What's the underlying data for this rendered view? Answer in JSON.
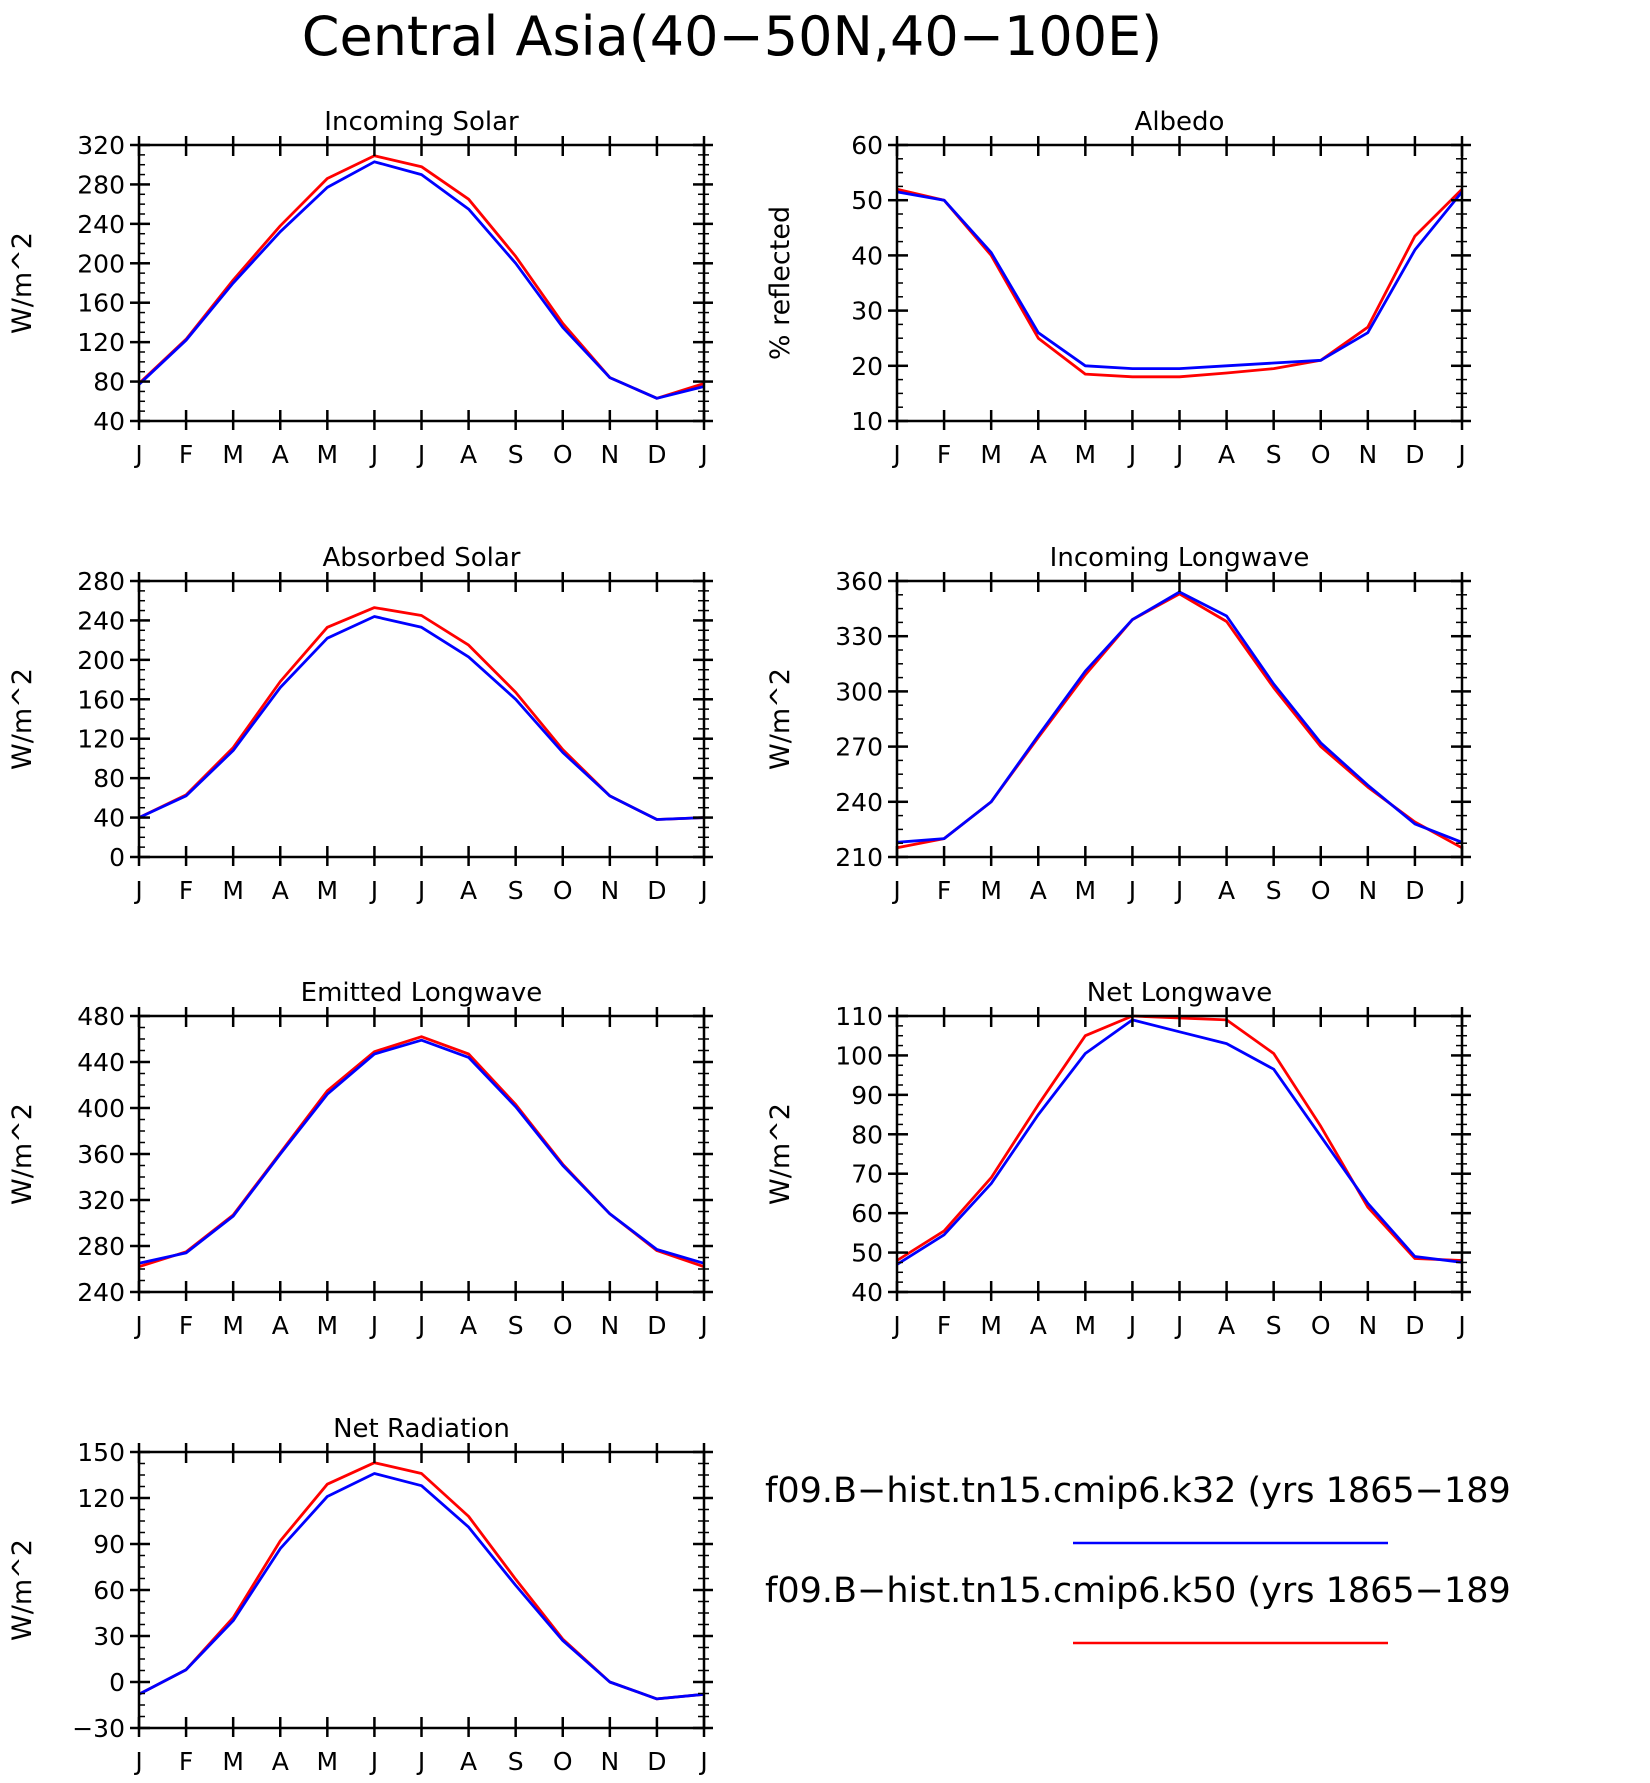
{
  "figure_title": "Central Asia(40−50N,40−100E)",
  "months": [
    "J",
    "F",
    "M",
    "A",
    "M",
    "J",
    "J",
    "A",
    "S",
    "O",
    "N",
    "D",
    "J"
  ],
  "colors": {
    "k32": "#0000ff",
    "k50": "#ff0000"
  },
  "legend": [
    {
      "label": "f09.B−hist.tn15.cmip6.k32 (yrs 1865−189",
      "color": "#0000ff"
    },
    {
      "label": "f09.B−hist.tn15.cmip6.k50 (yrs 1865−189",
      "color": "#ff0000"
    }
  ],
  "chart_data": [
    {
      "type": "line",
      "title": "Incoming Solar",
      "ylabel": "W/m^2",
      "ylim": [
        40,
        320
      ],
      "yticks": [
        40,
        80,
        120,
        160,
        200,
        240,
        280,
        320
      ],
      "series": [
        {
          "name": "f09.B−hist.tn15.cmip6.k32 (yrs 1865−189",
          "color": "#0000ff",
          "values": [
            77,
            122,
            180,
            232,
            277,
            303,
            290,
            255,
            200,
            135,
            84,
            63,
            75
          ]
        },
        {
          "name": "f09.B−hist.tn15.cmip6.k50 (yrs 1865−189",
          "color": "#ff0000",
          "values": [
            78,
            123,
            183,
            238,
            286,
            309,
            298,
            265,
            207,
            139,
            84,
            63,
            78
          ]
        }
      ]
    },
    {
      "type": "line",
      "title": "Albedo",
      "ylabel": "% reflected",
      "ylim": [
        10,
        60
      ],
      "yticks": [
        10,
        20,
        30,
        40,
        50,
        60
      ],
      "series": [
        {
          "name": "f09.B−hist.tn15.cmip6.k32 (yrs 1865−189",
          "color": "#0000ff",
          "values": [
            51.5,
            50,
            40.5,
            26,
            20,
            19.5,
            19.5,
            20,
            20.5,
            21,
            26,
            41,
            51.5
          ]
        },
        {
          "name": "f09.B−hist.tn15.cmip6.k50 (yrs 1865−189",
          "color": "#ff0000",
          "values": [
            52,
            50,
            40,
            25,
            18.5,
            18,
            18,
            18.7,
            19.5,
            21,
            27,
            43.5,
            52
          ]
        }
      ]
    },
    {
      "type": "line",
      "title": "Absorbed Solar",
      "ylabel": "W/m^2",
      "ylim": [
        0,
        280
      ],
      "yticks": [
        0,
        40,
        80,
        120,
        160,
        200,
        240,
        280
      ],
      "series": [
        {
          "name": "f09.B−hist.tn15.cmip6.k32 (yrs 1865−189",
          "color": "#0000ff",
          "values": [
            40,
            62,
            108,
            172,
            222,
            244,
            233,
            203,
            160,
            106,
            62,
            38,
            40
          ]
        },
        {
          "name": "f09.B−hist.tn15.cmip6.k50 (yrs 1865−189",
          "color": "#ff0000",
          "values": [
            40,
            63,
            111,
            178,
            233,
            253,
            245,
            215,
            167,
            109,
            62,
            38,
            40
          ]
        }
      ]
    },
    {
      "type": "line",
      "title": "Incoming Longwave",
      "ylabel": "W/m^2",
      "ylim": [
        210,
        360
      ],
      "yticks": [
        210,
        240,
        270,
        300,
        330,
        360
      ],
      "series": [
        {
          "name": "f09.B−hist.tn15.cmip6.k32 (yrs 1865−189",
          "color": "#0000ff",
          "values": [
            218,
            220,
            240,
            276,
            311,
            339,
            354,
            341,
            304,
            272,
            249,
            228,
            218
          ]
        },
        {
          "name": "f09.B−hist.tn15.cmip6.k50 (yrs 1865−189",
          "color": "#ff0000",
          "values": [
            215,
            220,
            240,
            275,
            309,
            339,
            353,
            338,
            302,
            270,
            248,
            229,
            215
          ]
        }
      ]
    },
    {
      "type": "line",
      "title": "Emitted Longwave",
      "ylabel": "W/m^2",
      "ylim": [
        240,
        480
      ],
      "yticks": [
        240,
        280,
        320,
        360,
        400,
        440,
        480
      ],
      "series": [
        {
          "name": "f09.B−hist.tn15.cmip6.k32 (yrs 1865−189",
          "color": "#0000ff",
          "values": [
            265,
            274,
            306,
            360,
            412,
            447,
            459,
            444,
            401,
            350,
            308,
            277,
            265
          ]
        },
        {
          "name": "f09.B−hist.tn15.cmip6.k50 (yrs 1865−189",
          "color": "#ff0000",
          "values": [
            262,
            275,
            307,
            361,
            415,
            449,
            462,
            447,
            403,
            351,
            308,
            276,
            262
          ]
        }
      ]
    },
    {
      "type": "line",
      "title": "Net Longwave",
      "ylabel": "W/m^2",
      "ylim": [
        40,
        110
      ],
      "yticks": [
        40,
        50,
        60,
        70,
        80,
        90,
        100,
        110
      ],
      "series": [
        {
          "name": "f09.B−hist.tn15.cmip6.k32 (yrs 1865−189",
          "color": "#0000ff",
          "values": [
            47,
            54.5,
            67.5,
            85,
            100.5,
            109,
            106,
            103,
            96.5,
            79.5,
            62.5,
            49,
            47.5
          ]
        },
        {
          "name": "f09.B−hist.tn15.cmip6.k50 (yrs 1865−189",
          "color": "#ff0000",
          "values": [
            48,
            55.5,
            69,
            87.5,
            105,
            110,
            109.5,
            109,
            100.5,
            82,
            61.5,
            48.5,
            48
          ]
        }
      ]
    },
    {
      "type": "line",
      "title": "Net Radiation",
      "ylabel": "W/m^2",
      "ylim": [
        -30,
        150
      ],
      "yticks": [
        -30,
        0,
        30,
        60,
        90,
        120,
        150
      ],
      "series": [
        {
          "name": "f09.B−hist.tn15.cmip6.k32 (yrs 1865−189",
          "color": "#0000ff",
          "values": [
            -8,
            8,
            40,
            87,
            121,
            136,
            128,
            101,
            63,
            27,
            0,
            -11,
            -8
          ]
        },
        {
          "name": "f09.B−hist.tn15.cmip6.k50 (yrs 1865−189",
          "color": "#ff0000",
          "values": [
            -8,
            8,
            42,
            92,
            129,
            143,
            136,
            108,
            67,
            28,
            0,
            -11,
            -8
          ]
        }
      ]
    }
  ]
}
